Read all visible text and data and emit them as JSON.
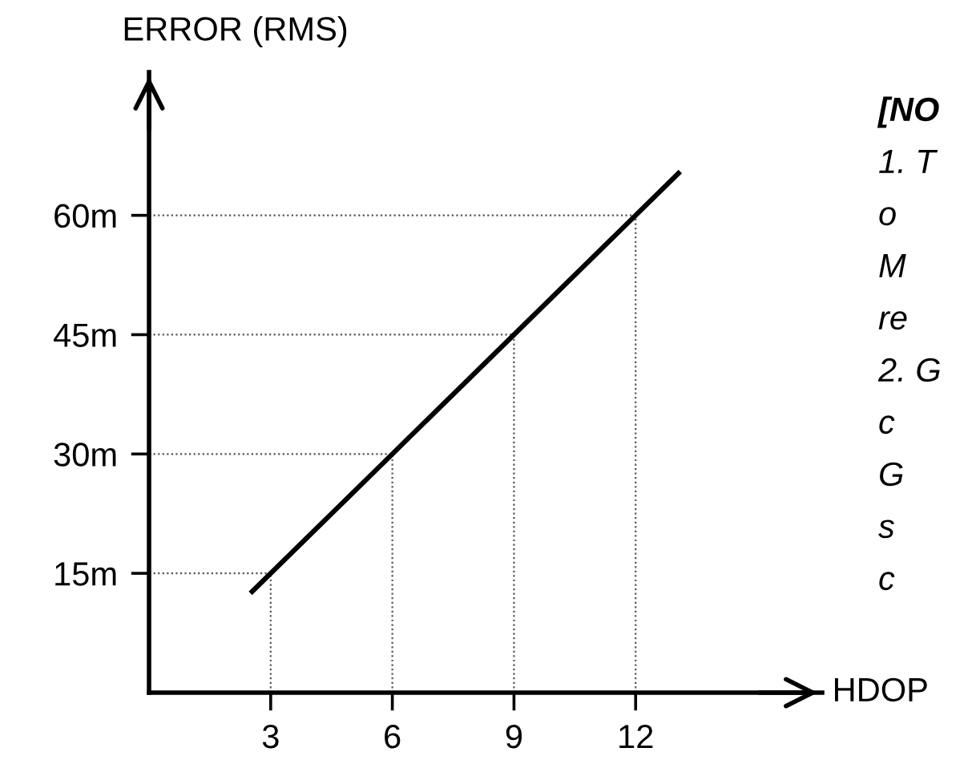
{
  "chart_data": {
    "type": "line",
    "xlabel": "HDOP",
    "ylabel": "ERROR (RMS)",
    "x": [
      2.5,
      6,
      9,
      12,
      13.1
    ],
    "series": [
      {
        "color": "#000000",
        "values": [
          12.5,
          30,
          45,
          60,
          65.5
        ]
      }
    ],
    "xlim": [
      0,
      16.6
    ],
    "ylim": [
      0,
      78
    ],
    "xticks": [
      3,
      6,
      9,
      12
    ],
    "yticks": [
      {
        "value": 15,
        "label": "15m"
      },
      {
        "value": 30,
        "label": "30m"
      },
      {
        "value": 45,
        "label": "45m"
      },
      {
        "value": 60,
        "label": "60m"
      }
    ],
    "grid": true,
    "marker": "none",
    "line_style": "solid",
    "annotations": [
      "[NO",
      "1. T",
      "o",
      "M",
      "re",
      "2. G",
      "c",
      "G",
      "s",
      "c"
    ]
  }
}
